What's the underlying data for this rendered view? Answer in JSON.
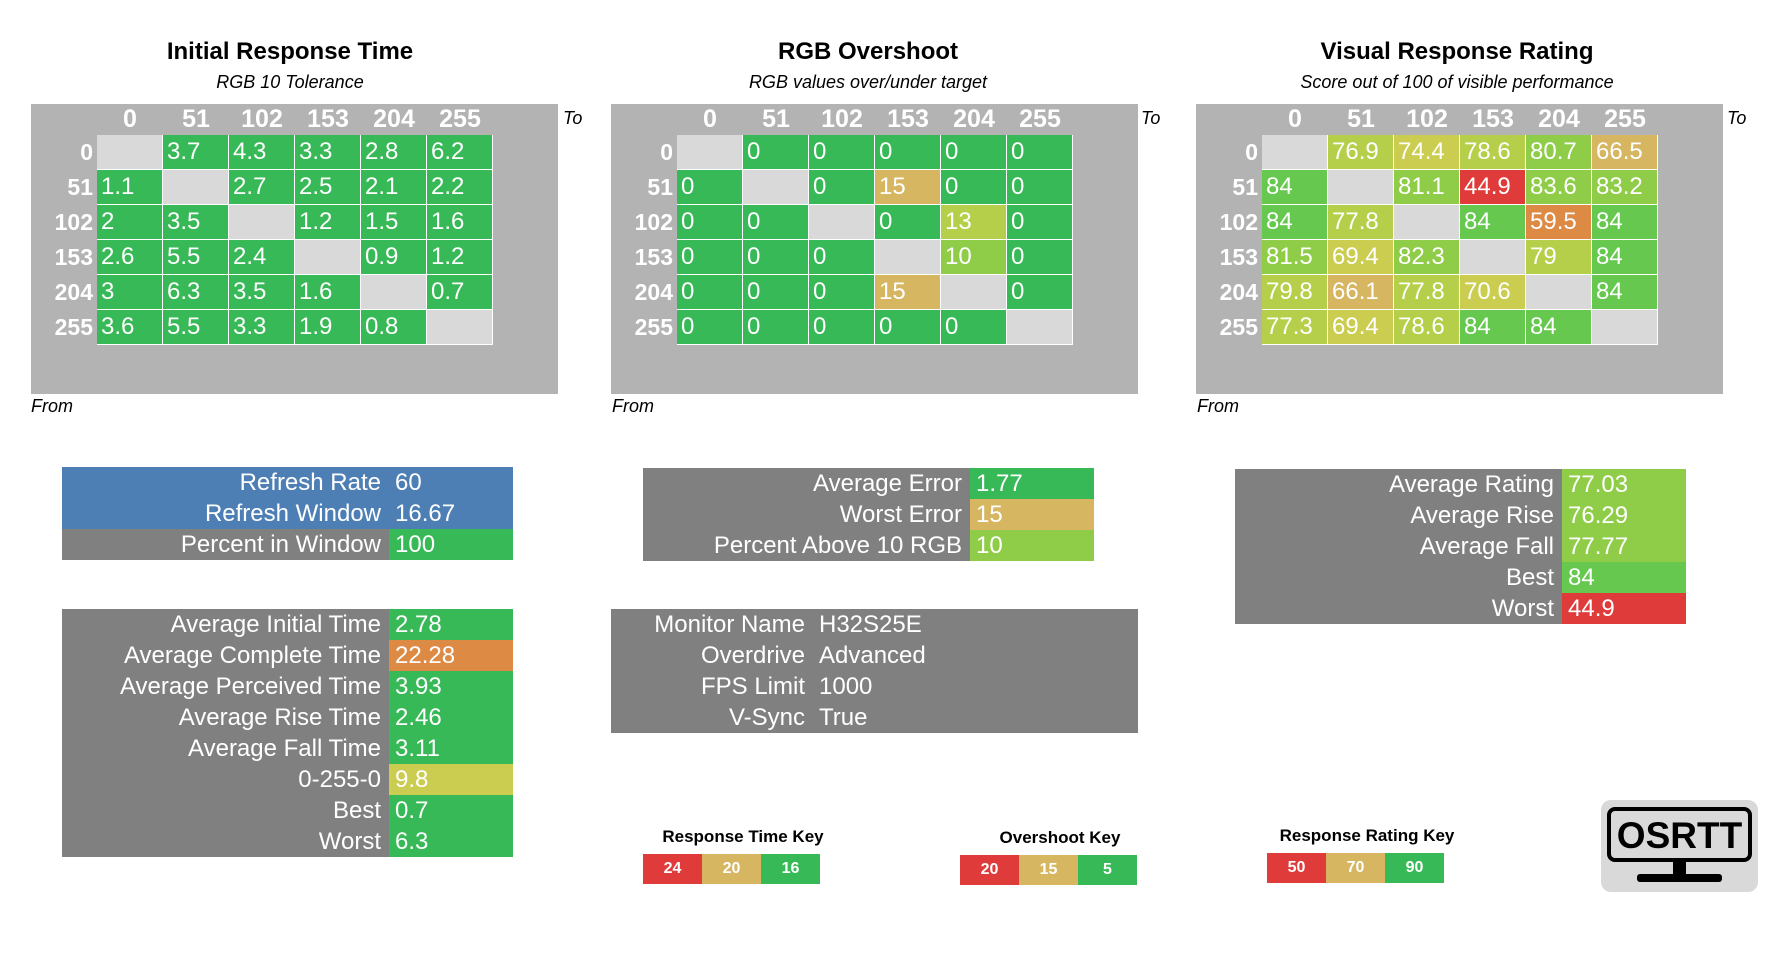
{
  "colors": {
    "gray": "#808080",
    "header_gray": "#b3b3b3",
    "blank": "#d9d9d9",
    "green": "#38b957",
    "light_green": "#66c84f",
    "yellow_green": "#8fcd49",
    "lime": "#b6cf4a",
    "olive": "#cbcd50",
    "tan": "#d6b661",
    "orange": "#dd8a44",
    "red": "#e03b3b",
    "blue": "#4d7fb5"
  },
  "axis": {
    "to": "To",
    "from": "From"
  },
  "labels": [
    "0",
    "51",
    "102",
    "153",
    "204",
    "255"
  ],
  "chart_data": [
    {
      "type": "table",
      "title": "Initial Response Time",
      "subtitle": "RGB 10 Tolerance",
      "rows": [
        [
          "",
          "3.7",
          "4.3",
          "3.3",
          "2.8",
          "6.2"
        ],
        [
          "1.1",
          "",
          "2.7",
          "2.5",
          "2.1",
          "2.2"
        ],
        [
          "2",
          "3.5",
          "",
          "1.2",
          "1.5",
          "1.6"
        ],
        [
          "2.6",
          "5.5",
          "2.4",
          "",
          "0.9",
          "1.2"
        ],
        [
          "3",
          "6.3",
          "3.5",
          "1.6",
          "",
          "0.7"
        ],
        [
          "3.6",
          "5.5",
          "3.3",
          "1.9",
          "0.8",
          ""
        ]
      ]
    },
    {
      "type": "table",
      "title": "RGB Overshoot",
      "subtitle": "RGB values over/under target",
      "rows": [
        [
          "",
          "0",
          "0",
          "0",
          "0",
          "0"
        ],
        [
          "0",
          "",
          "0",
          "15",
          "0",
          "0"
        ],
        [
          "0",
          "0",
          "",
          "0",
          "13",
          "0"
        ],
        [
          "0",
          "0",
          "0",
          "",
          "10",
          "0"
        ],
        [
          "0",
          "0",
          "0",
          "15",
          "",
          "0"
        ],
        [
          "0",
          "0",
          "0",
          "0",
          "0",
          ""
        ]
      ]
    },
    {
      "type": "table",
      "title": "Visual Response Rating",
      "subtitle": "Score out of 100 of visible performance",
      "rows": [
        [
          "",
          "76.9",
          "74.4",
          "78.6",
          "80.7",
          "66.5"
        ],
        [
          "84",
          "",
          "81.1",
          "44.9",
          "83.6",
          "83.2"
        ],
        [
          "84",
          "77.8",
          "",
          "84",
          "59.5",
          "84"
        ],
        [
          "81.5",
          "69.4",
          "82.3",
          "",
          "79",
          "84"
        ],
        [
          "79.8",
          "66.1",
          "77.8",
          "70.6",
          "",
          "84"
        ],
        [
          "77.3",
          "69.4",
          "78.6",
          "84",
          "84",
          ""
        ]
      ]
    }
  ],
  "refresh": [
    {
      "label": "Refresh Rate",
      "value": "60",
      "color": "#4d7fb5",
      "vcolor": "#4d7fb5"
    },
    {
      "label": "Refresh Window",
      "value": "16.67",
      "color": "#4d7fb5",
      "vcolor": "#4d7fb5"
    },
    {
      "label": "Percent in Window",
      "value": "100",
      "color": "#808080",
      "vcolor": "#38b957"
    }
  ],
  "response_stats": [
    {
      "label": "Average Initial Time",
      "value": "2.78",
      "vcolor": "#38b957"
    },
    {
      "label": "Average Complete Time",
      "value": "22.28",
      "vcolor": "#dd8a44"
    },
    {
      "label": "Average Perceived Time",
      "value": "3.93",
      "vcolor": "#38b957"
    },
    {
      "label": "Average Rise Time",
      "value": "2.46",
      "vcolor": "#38b957"
    },
    {
      "label": "Average Fall Time",
      "value": "3.11",
      "vcolor": "#38b957"
    },
    {
      "label": "0-255-0",
      "value": "9.8",
      "vcolor": "#cbcd50"
    },
    {
      "label": "Best",
      "value": "0.7",
      "vcolor": "#38b957"
    },
    {
      "label": "Worst",
      "value": "6.3",
      "vcolor": "#38b957"
    }
  ],
  "overshoot_stats": [
    {
      "label": "Average Error",
      "value": "1.77",
      "vcolor": "#38b957"
    },
    {
      "label": "Worst Error",
      "value": "15",
      "vcolor": "#d6b661"
    },
    {
      "label": "Percent Above 10 RGB",
      "value": "10",
      "vcolor": "#8fcd49"
    }
  ],
  "monitor_info": [
    {
      "label": "Monitor Name",
      "value": "H32S25E"
    },
    {
      "label": "Overdrive",
      "value": "Advanced"
    },
    {
      "label": "FPS Limit",
      "value": "1000"
    },
    {
      "label": "V-Sync",
      "value": "True"
    }
  ],
  "rating_stats": [
    {
      "label": "Average Rating",
      "value": "77.03",
      "vcolor": "#8fcd49"
    },
    {
      "label": "Average Rise",
      "value": "76.29",
      "vcolor": "#8fcd49"
    },
    {
      "label": "Average Fall",
      "value": "77.77",
      "vcolor": "#8fcd49"
    },
    {
      "label": "Best",
      "value": "84",
      "vcolor": "#66c84f"
    },
    {
      "label": "Worst",
      "value": "44.9",
      "vcolor": "#e03b3b"
    }
  ],
  "keys": [
    {
      "title": "Response Time Key",
      "items": [
        "24",
        "20",
        "16"
      ],
      "colors": [
        "#e03b3b",
        "#d6b661",
        "#38b957"
      ]
    },
    {
      "title": "Overshoot Key",
      "items": [
        "20",
        "15",
        "5"
      ],
      "colors": [
        "#e03b3b",
        "#d6b661",
        "#38b957"
      ]
    },
    {
      "title": "Response Rating Key",
      "items": [
        "50",
        "70",
        "90"
      ],
      "colors": [
        "#e03b3b",
        "#d6b661",
        "#38b957"
      ]
    }
  ],
  "logo": {
    "text": "OSRTT"
  }
}
